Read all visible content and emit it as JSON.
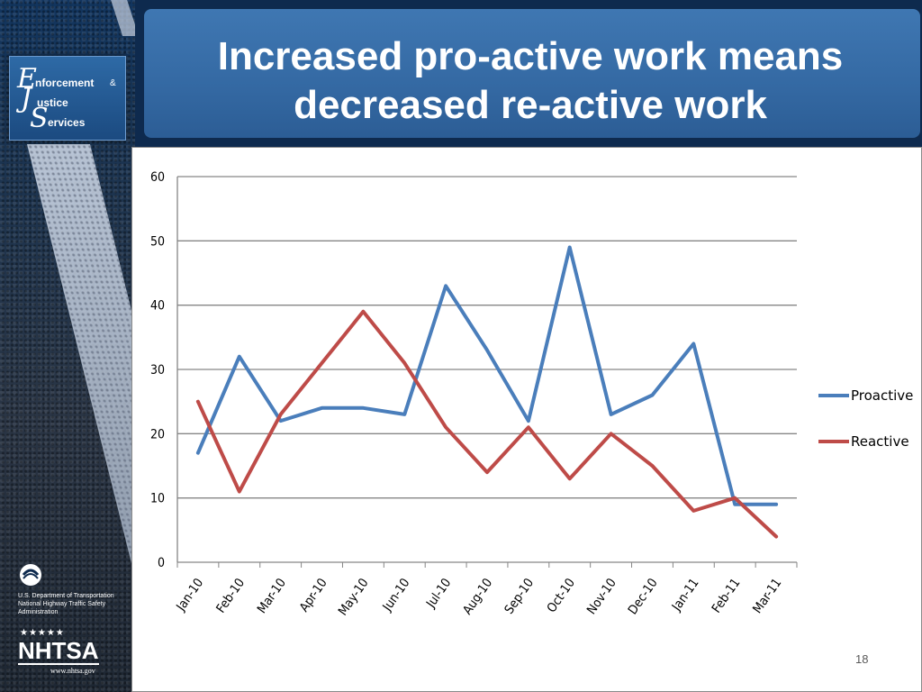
{
  "slide": {
    "title": "Increased pro-active work means decreased re-active work",
    "page_number": "18"
  },
  "branding": {
    "ejs": {
      "letter_e": "E",
      "word_e": "nforcement",
      "amp": "&",
      "letter_j": "J",
      "word_j": "ustice",
      "letter_s": "S",
      "word_s": "ervices"
    },
    "dot_text": "U.S. Department of Transportation National Highway Traffic Safety Administration",
    "stars": "★★★★★",
    "nhtsa": "NHTSA",
    "nhtsa_url": "www.nhtsa.gov"
  },
  "colors": {
    "proactive": "#4a7ebb",
    "reactive": "#be4b48",
    "grid": "#868686"
  },
  "chart_data": {
    "type": "line",
    "categories": [
      "Jan-10",
      "Feb-10",
      "Mar-10",
      "Apr-10",
      "May-10",
      "Jun-10",
      "Jul-10",
      "Aug-10",
      "Sep-10",
      "Oct-10",
      "Nov-10",
      "Dec-10",
      "Jan-11",
      "Feb-11",
      "Mar-11"
    ],
    "series": [
      {
        "name": "Proactive",
        "values": [
          17,
          32,
          22,
          24,
          24,
          23,
          43,
          33,
          22,
          49,
          23,
          26,
          34,
          9,
          9
        ]
      },
      {
        "name": "Reactive",
        "values": [
          25,
          11,
          23,
          31,
          39,
          31,
          21,
          14,
          21,
          13,
          20,
          15,
          8,
          10,
          4
        ]
      }
    ],
    "yticks": [
      "0",
      "10",
      "20",
      "30",
      "40",
      "50",
      "60"
    ],
    "ylim": [
      0,
      60
    ],
    "grid": true,
    "legend_position": "right"
  }
}
